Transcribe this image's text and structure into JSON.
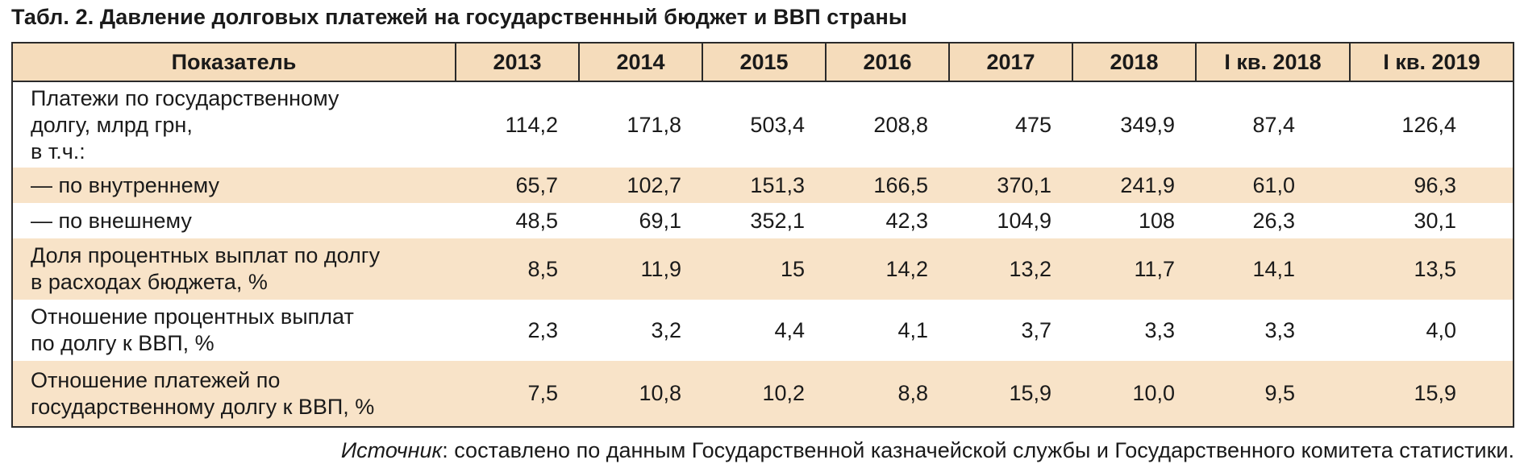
{
  "title": "Табл. 2. Давление долговых платежей на государственный бюджет и ВВП страны",
  "table": {
    "headers": [
      "Показатель",
      "2013",
      "2014",
      "2015",
      "2016",
      "2017",
      "2018",
      "I кв. 2018",
      "I кв. 2019"
    ],
    "rows": [
      {
        "label_lines": [
          "Платежи по государственному",
          "долгу, млрд грн,",
          "в т.ч.:"
        ],
        "values": [
          "114,2",
          "171,8",
          "503,4",
          "208,8",
          "475",
          "349,9",
          "87,4",
          "126,4"
        ]
      },
      {
        "label_lines": [
          "— по внутреннему"
        ],
        "values": [
          "65,7",
          "102,7",
          "151,3",
          "166,5",
          "370,1",
          "241,9",
          "61,0",
          "96,3"
        ]
      },
      {
        "label_lines": [
          "— по внешнему"
        ],
        "values": [
          "48,5",
          "69,1",
          "352,1",
          "42,3",
          "104,9",
          "108",
          "26,3",
          "30,1"
        ]
      },
      {
        "label_lines": [
          "Доля процентных выплат по долгу",
          "в расходах бюджета, %"
        ],
        "values": [
          "8,5",
          "11,9",
          "15",
          "14,2",
          "13,2",
          "11,7",
          "14,1",
          "13,5"
        ]
      },
      {
        "label_lines": [
          "Отношение процентных выплат",
          "по долгу к ВВП, %"
        ],
        "values": [
          "2,3",
          "3,2",
          "4,4",
          "4,1",
          "3,7",
          "3,3",
          "3,3",
          "4,0"
        ]
      },
      {
        "label_lines": [
          "Отношение платежей по",
          "государственному долгу к ВВП, %"
        ],
        "values": [
          "7,5",
          "10,8",
          "10,2",
          "8,8",
          "15,9",
          "10,0",
          "9,5",
          "15,9"
        ]
      }
    ]
  },
  "source": {
    "lead": "Источник",
    "text": ": составлено по данным Государственной казначейской службы и Государственного комитета статистики."
  },
  "colors": {
    "header_bg": "#f5dcbb",
    "shaded_row_bg": "#f8e3c8",
    "border": "#2a2a2a"
  }
}
